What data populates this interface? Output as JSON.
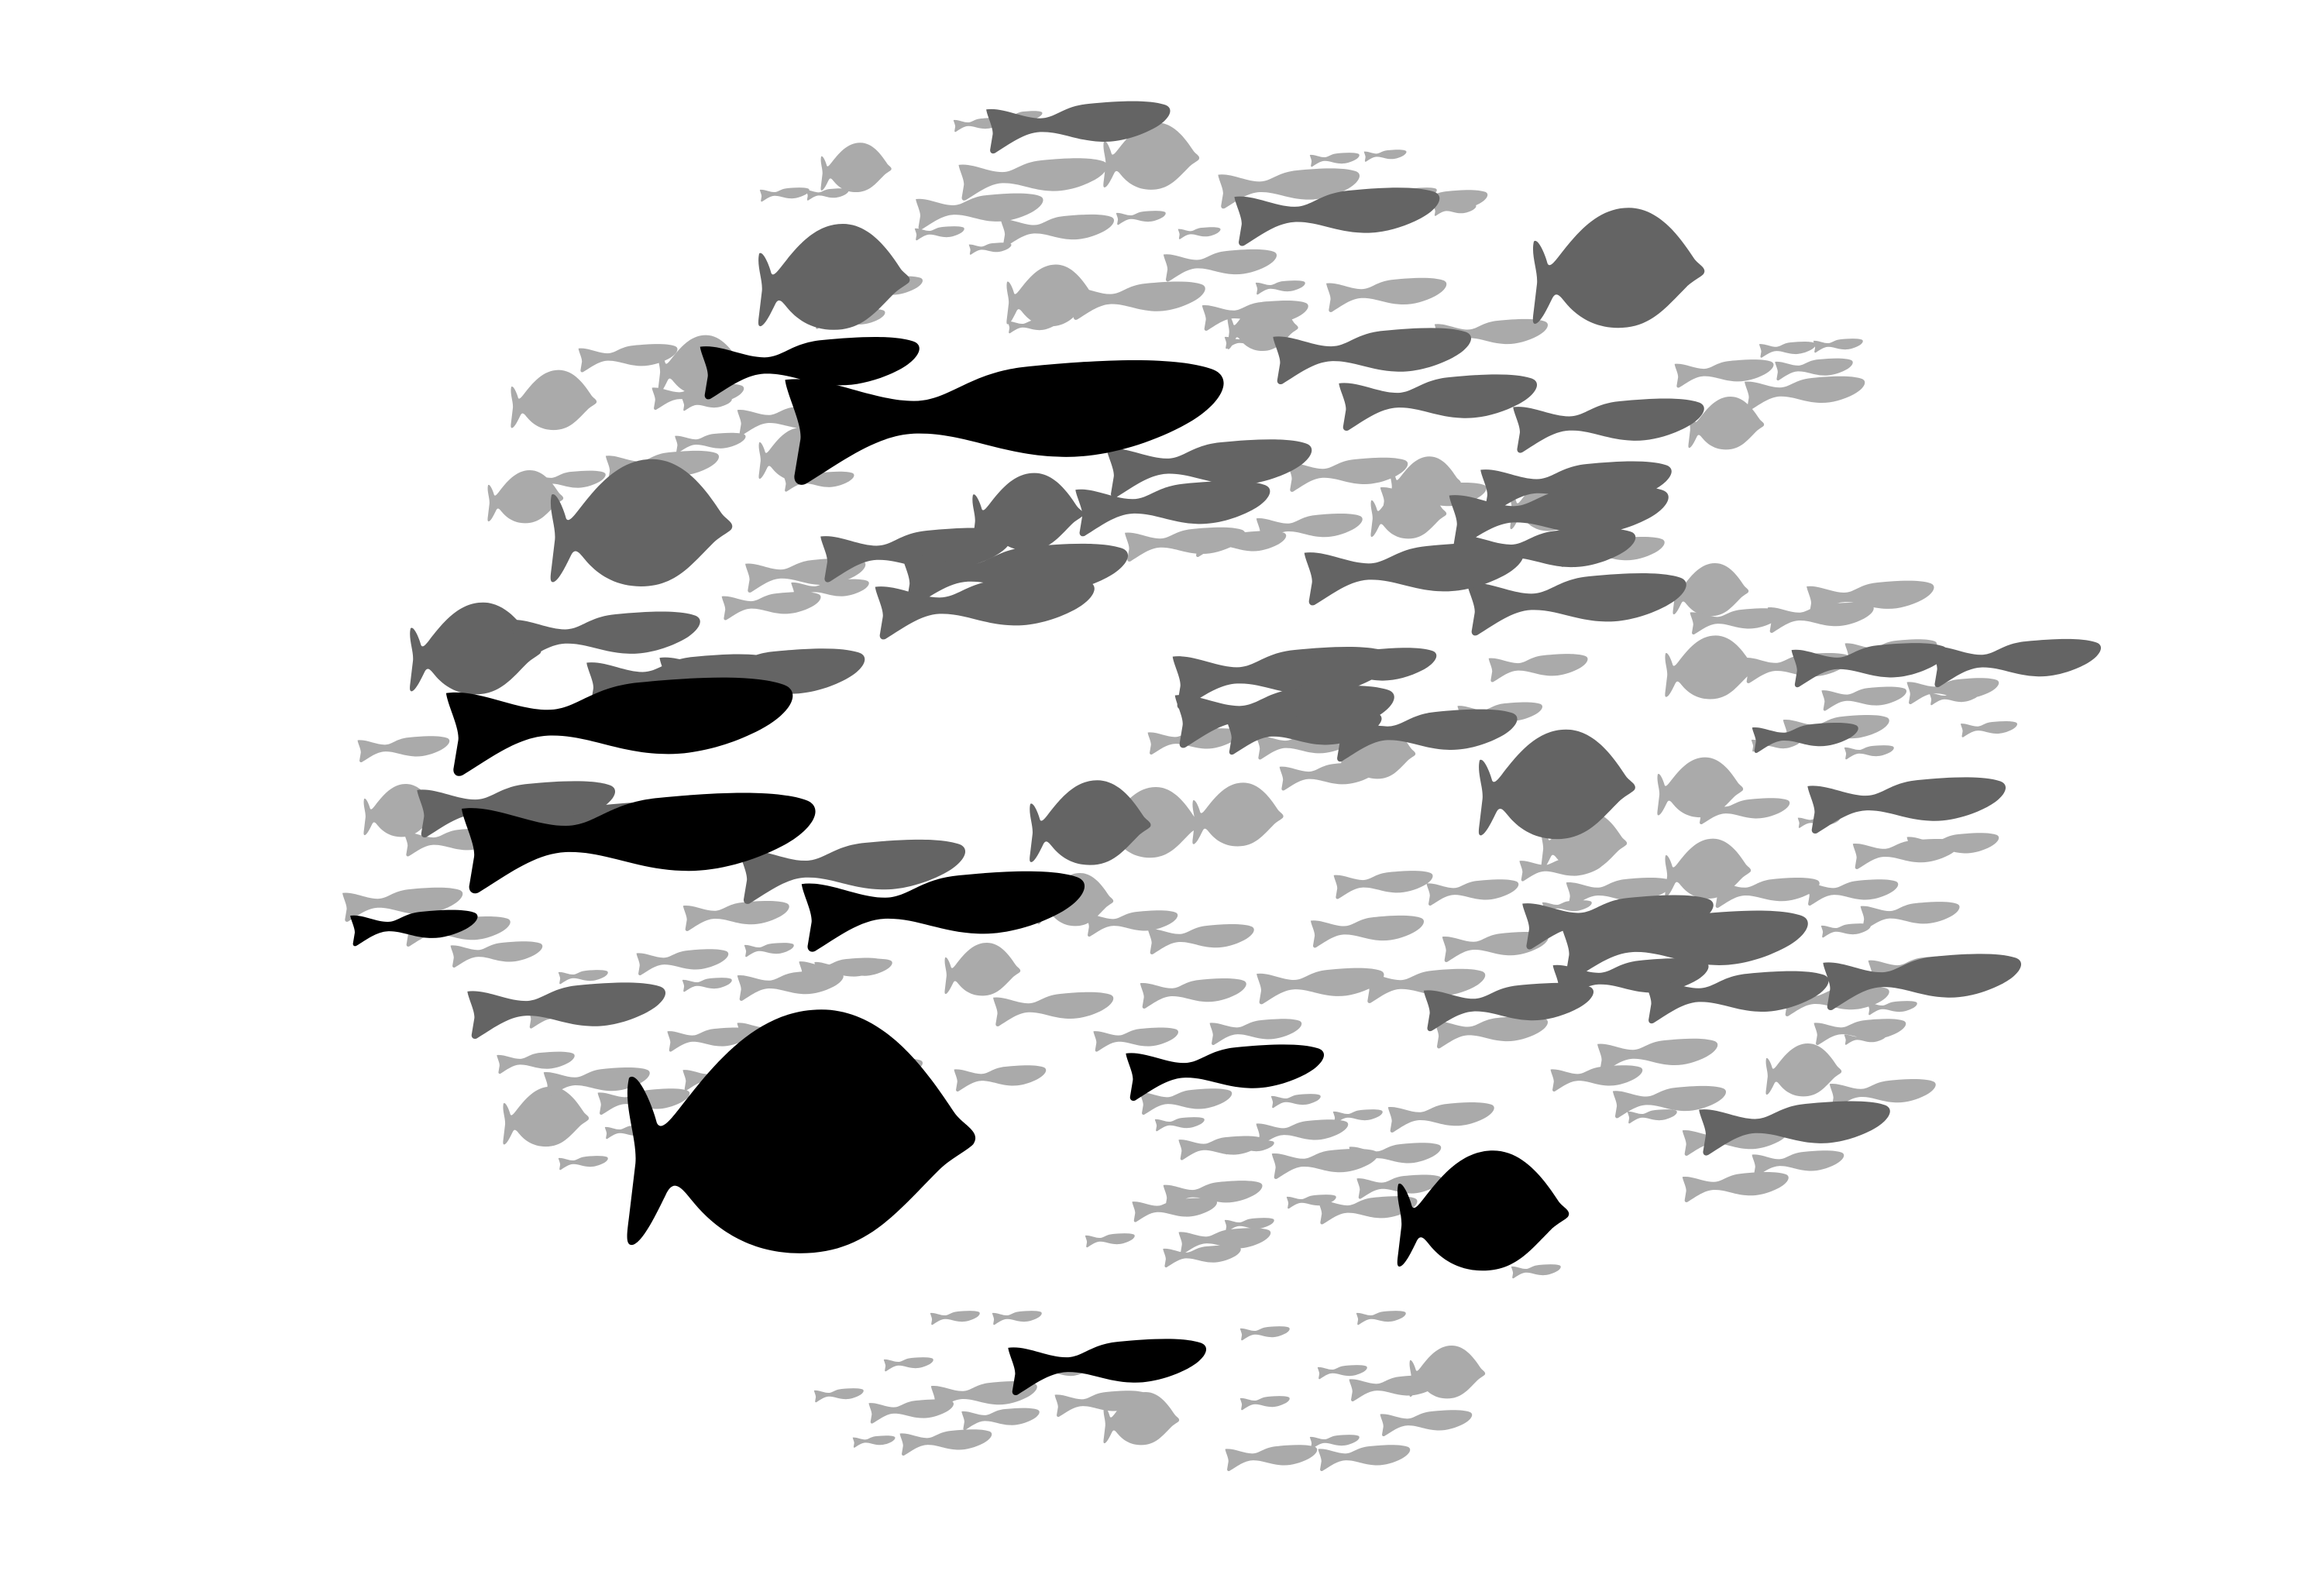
{
  "background_color": "#ffffff",
  "palette": {
    "light": "#aaaaaa",
    "mid": "#646464",
    "dark": "#000000"
  },
  "icons": {
    "slim_fish": "slim-fish-icon",
    "round_fish": "round-fish-icon",
    "tiny_fish": "tiny-fish-icon"
  }
}
